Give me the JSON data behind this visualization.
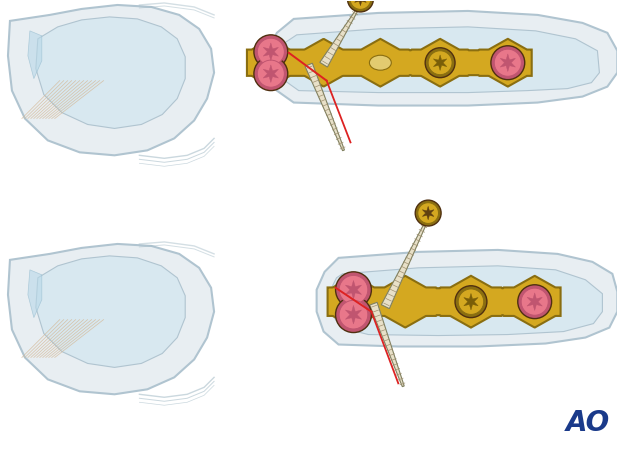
{
  "background_color": "#ffffff",
  "bone_fill": "#e8eef2",
  "bone_stroke": "#b0c4d0",
  "plate_color": "#d4a820",
  "plate_edge_color": "#8a6e10",
  "screw_body_color": "#e8e0c8",
  "screw_head_color": "#d4a820",
  "screw_thread_color": "#a09070",
  "pink_screw_color": "#e8778a",
  "pink_screw_edge": "#c05570",
  "star_color": "#c05570",
  "red_line_color": "#dd2222",
  "tendon_color": "#d4b896",
  "ao_color": "#1a3a8a",
  "fig_width": 6.2,
  "fig_height": 4.59,
  "dpi": 100
}
